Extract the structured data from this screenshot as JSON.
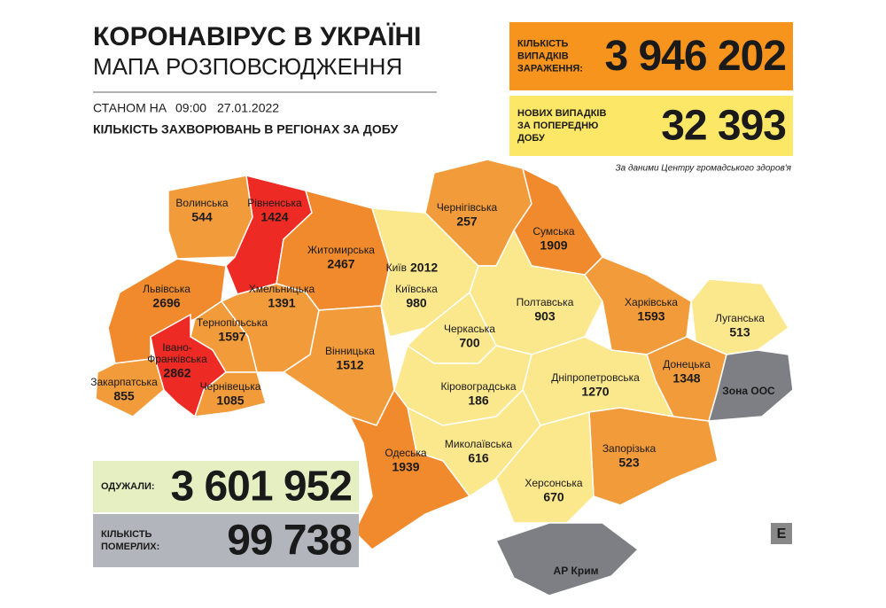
{
  "header": {
    "title": "КОРОНАВІРУС В УКРАЇНІ",
    "subtitle": "МАПА РОЗПОВСЮДЖЕННЯ",
    "date_prefix": "СТАНОМ НА",
    "time": "09:00",
    "date": "27.01.2022",
    "caption": "КІЛЬКІСТЬ ЗАХВОРЮВАНЬ В РЕГІОНАХ ЗА ДОБУ"
  },
  "stats": [
    {
      "label": [
        "КІЛЬКІСТЬ",
        "ВИПАДКІВ",
        "ЗАРАЖЕННЯ:"
      ],
      "value": "3 946 202",
      "color": "#f7941d"
    },
    {
      "label": [
        "НОВИХ ВИПАДКІВ",
        "ЗА ПОПЕРЕДНЮ",
        "ДОБУ"
      ],
      "value": "32 393",
      "color": "#fde767"
    },
    {
      "label": [
        "ОДУЖАЛИ:"
      ],
      "value": "3 601 952",
      "color": "#e6efc2"
    },
    {
      "label": [
        "КІЛЬКІСТЬ",
        "ПОМЕРЛИХ:"
      ],
      "value": "99 738",
      "color": "#b2b5bc"
    }
  ],
  "source": "За даними Центру громадського здоров'я",
  "regions": [
    {
      "name": "Волинська",
      "value": 544,
      "color": "#f29b3b"
    },
    {
      "name": "Рівненська",
      "value": 1424,
      "color": "#ee2a24"
    },
    {
      "name": "Житомирська",
      "value": 2467,
      "color": "#f08a2c"
    },
    {
      "name": "Львівська",
      "value": 2696,
      "color": "#f08a2c"
    },
    {
      "name": "Хмельницька",
      "value": 1391,
      "color": "#f29b3b"
    },
    {
      "name": "Тернопільська",
      "value": 1597,
      "color": "#f29b3b"
    },
    {
      "name": [
        "Івано-",
        "Франківська"
      ],
      "value": 2862,
      "color": "#ee2a24"
    },
    {
      "name": "Закарпатська",
      "value": 855,
      "color": "#f29b3b"
    },
    {
      "name": "Чернівецька",
      "value": 1085,
      "color": "#f29b3b"
    },
    {
      "name": "Вінницька",
      "value": 1512,
      "color": "#f29b3b"
    },
    {
      "name": "Київ",
      "value": 2012,
      "color": "#fbe06e"
    },
    {
      "name": "Київська",
      "value": 980,
      "color": "#fbe78c"
    },
    {
      "name": "Чернігівська",
      "value": 257,
      "color": "#f29b3b"
    },
    {
      "name": "Сумська",
      "value": 1909,
      "color": "#f08a2c"
    },
    {
      "name": "Полтавська",
      "value": 903,
      "color": "#fbe78c"
    },
    {
      "name": "Черкаська",
      "value": 700,
      "color": "#fbe78c"
    },
    {
      "name": "Харківська",
      "value": 1593,
      "color": "#f29b3b"
    },
    {
      "name": "Луганська",
      "value": 513,
      "color": "#fbe78c"
    },
    {
      "name": "Донецька",
      "value": 1348,
      "color": "#f29b3b"
    },
    {
      "name": "Кіровоградська",
      "value": 186,
      "color": "#fbe78c"
    },
    {
      "name": "Дніпропетровська",
      "value": 1270,
      "color": "#fbe78c"
    },
    {
      "name": "Запорізька",
      "value": 523,
      "color": "#f29b3b"
    },
    {
      "name": "Миколаївська",
      "value": 616,
      "color": "#fbe78c"
    },
    {
      "name": "Одеська",
      "value": 1939,
      "color": "#f08a2c"
    },
    {
      "name": "Херсонська",
      "value": 670,
      "color": "#fbe78c"
    }
  ],
  "zones": [
    "Зона ООС",
    "АР Крим"
  ],
  "logo": "E"
}
